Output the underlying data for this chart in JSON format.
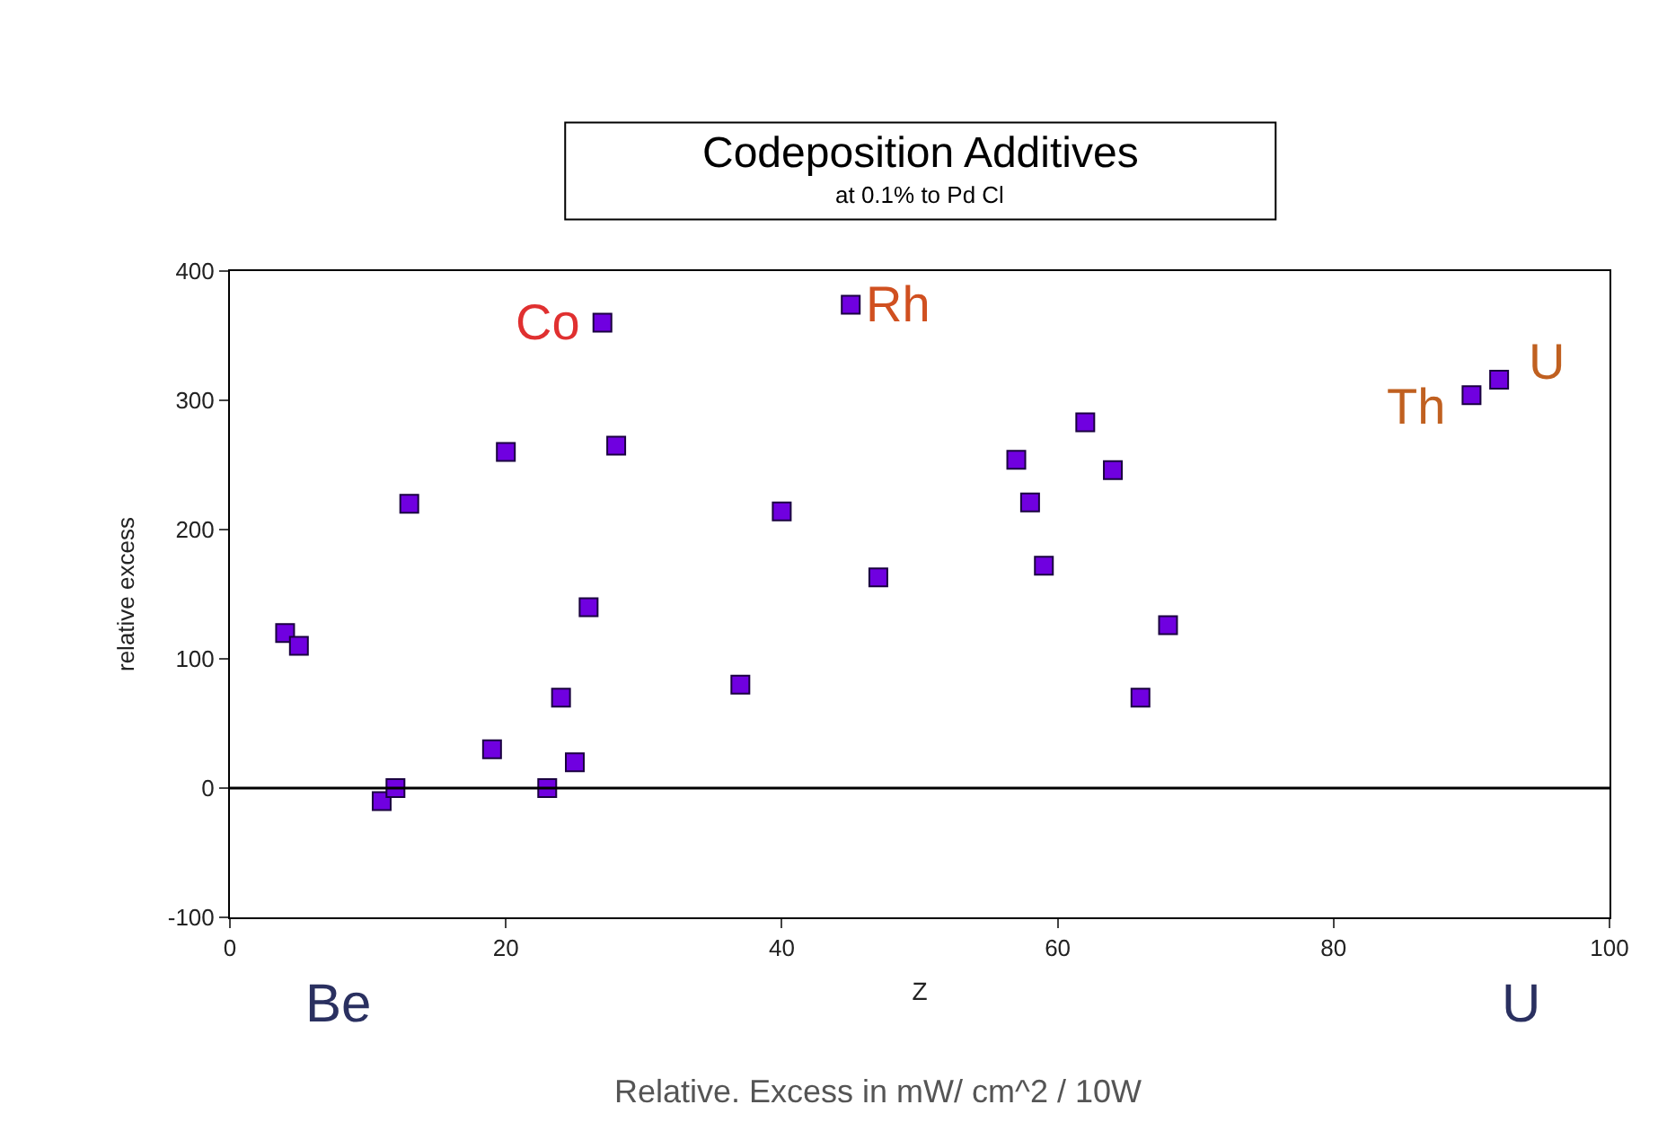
{
  "chart_data": {
    "type": "scatter",
    "title": "Codeposition Additives",
    "subtitle": "at 0.1% to Pd Cl",
    "xlabel": "Z",
    "ylabel": "relative excess",
    "x": [
      4,
      5,
      11,
      12,
      13,
      19,
      20,
      23,
      24,
      25,
      26,
      27,
      28,
      37,
      40,
      45,
      47,
      57,
      58,
      59,
      62,
      64,
      66,
      68,
      90,
      92
    ],
    "series": [
      {
        "color": "#7000e0",
        "values": [
          120,
          110,
          -10,
          0,
          220,
          30,
          260,
          0,
          70,
          20,
          140,
          360,
          265,
          80,
          214,
          374,
          163,
          254,
          221,
          172,
          283,
          246,
          70,
          126,
          304,
          316
        ]
      }
    ],
    "xlim": [
      0,
      100
    ],
    "xticks": [
      0,
      20,
      40,
      60,
      80,
      100
    ],
    "ylim": [
      -100,
      400
    ],
    "yticks": [
      -100,
      0,
      100,
      200,
      300,
      400
    ],
    "ref_lines": [
      {
        "axis": "y",
        "value": 0,
        "color": "#000000"
      }
    ],
    "annotations": [
      {
        "text": "Co",
        "x": 27,
        "y": 360
      },
      {
        "text": "Rh",
        "x": 45,
        "y": 374
      },
      {
        "text": "Th",
        "x": 90,
        "y": 304
      },
      {
        "text": "U",
        "x": 92,
        "y": 316
      },
      "Be",
      "U",
      "Relative. Excess in mW/ cm^2 / 10W"
    ],
    "marker": "square"
  }
}
